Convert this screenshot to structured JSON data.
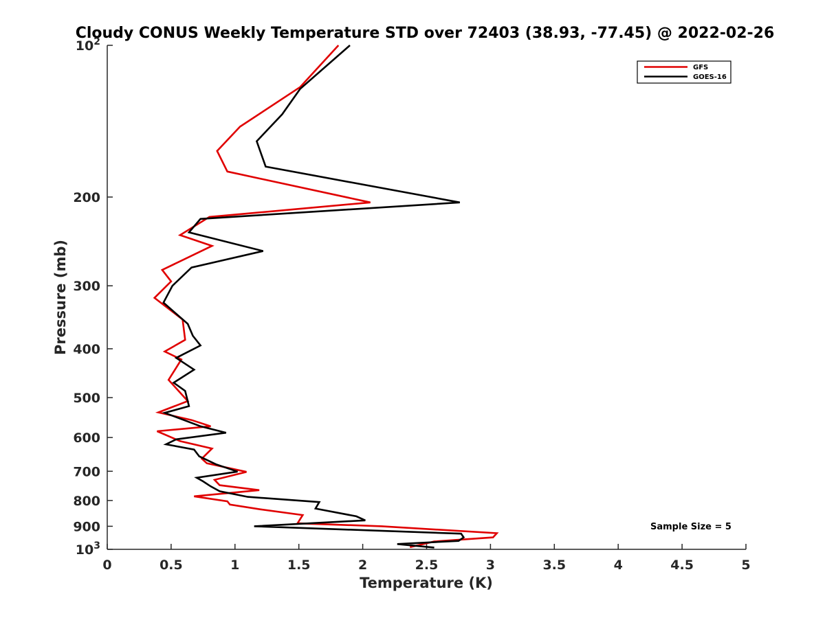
{
  "chart_data": {
    "type": "line",
    "title": "Cloudy CONUS Weekly Temperature STD over 72403 (38.93, -77.45) @ 2022-02-26",
    "xlabel": "Temperature (K)",
    "ylabel": "Pressure (mb)",
    "xlim": [
      0,
      5
    ],
    "ylim": [
      100,
      1000
    ],
    "y_scale": "log",
    "y_reversed": true,
    "grid": false,
    "legend_position": "top-right",
    "x_ticks": [
      "0",
      "0.5",
      "1",
      "1.5",
      "2",
      "2.5",
      "3",
      "3.5",
      "4",
      "4.5",
      "5"
    ],
    "y_ticks": [
      {
        "value": 100,
        "base": "10",
        "exp": "2"
      },
      {
        "value": 200,
        "label": "200"
      },
      {
        "value": 300,
        "label": "300"
      },
      {
        "value": 400,
        "label": "400"
      },
      {
        "value": 500,
        "label": "500"
      },
      {
        "value": 600,
        "label": "600"
      },
      {
        "value": 700,
        "label": "700"
      },
      {
        "value": 800,
        "label": "800"
      },
      {
        "value": 900,
        "label": "900"
      },
      {
        "value": 1000,
        "base": "10",
        "exp": "3"
      }
    ],
    "annotation": "Sample Size = 5",
    "series": [
      {
        "name": "GFS",
        "color": "#e00000",
        "points": [
          [
            1.81,
            100
          ],
          [
            1.51,
            121
          ],
          [
            1.04,
            145
          ],
          [
            0.86,
            162
          ],
          [
            0.94,
            178
          ],
          [
            2.06,
            205
          ],
          [
            0.8,
            219
          ],
          [
            0.57,
            238
          ],
          [
            0.82,
            250
          ],
          [
            0.43,
            279
          ],
          [
            0.5,
            294
          ],
          [
            0.37,
            317
          ],
          [
            0.59,
            350
          ],
          [
            0.61,
            384
          ],
          [
            0.45,
            405
          ],
          [
            0.58,
            420
          ],
          [
            0.48,
            461
          ],
          [
            0.63,
            508
          ],
          [
            0.4,
            535
          ],
          [
            0.66,
            554
          ],
          [
            0.81,
            570
          ],
          [
            0.39,
            583
          ],
          [
            0.57,
            610
          ],
          [
            0.82,
            631
          ],
          [
            0.74,
            661
          ],
          [
            0.78,
            675
          ],
          [
            1.09,
            702
          ],
          [
            0.84,
            728
          ],
          [
            0.88,
            746
          ],
          [
            1.19,
            763
          ],
          [
            0.68,
            785
          ],
          [
            0.94,
            803
          ],
          [
            0.96,
            815
          ],
          [
            1.2,
            833
          ],
          [
            1.53,
            855
          ],
          [
            1.49,
            888
          ],
          [
            2.15,
            900
          ],
          [
            3.05,
            929
          ],
          [
            3.02,
            947
          ],
          [
            2.56,
            965
          ],
          [
            2.37,
            990
          ]
        ]
      },
      {
        "name": "GOES-16",
        "color": "#000000",
        "points": [
          [
            1.9,
            100
          ],
          [
            1.51,
            122
          ],
          [
            1.37,
            137
          ],
          [
            1.17,
            155
          ],
          [
            1.24,
            174
          ],
          [
            2.76,
            205
          ],
          [
            0.73,
            221
          ],
          [
            0.64,
            235
          ],
          [
            1.22,
            256
          ],
          [
            0.66,
            276
          ],
          [
            0.51,
            300
          ],
          [
            0.44,
            324
          ],
          [
            0.63,
            357
          ],
          [
            0.67,
            377
          ],
          [
            0.73,
            394
          ],
          [
            0.54,
            417
          ],
          [
            0.68,
            440
          ],
          [
            0.52,
            467
          ],
          [
            0.61,
            485
          ],
          [
            0.64,
            520
          ],
          [
            0.45,
            536
          ],
          [
            0.73,
            570
          ],
          [
            0.93,
            587
          ],
          [
            0.54,
            605
          ],
          [
            0.46,
            619
          ],
          [
            0.68,
            634
          ],
          [
            0.72,
            654
          ],
          [
            0.85,
            678
          ],
          [
            1.02,
            701
          ],
          [
            0.7,
            721
          ],
          [
            0.75,
            733
          ],
          [
            0.81,
            750
          ],
          [
            0.88,
            767
          ],
          [
            1.1,
            787
          ],
          [
            1.66,
            806
          ],
          [
            1.63,
            830
          ],
          [
            1.95,
            860
          ],
          [
            2.02,
            876
          ],
          [
            1.15,
            900
          ],
          [
            2.77,
            931
          ],
          [
            2.79,
            947
          ],
          [
            2.75,
            962
          ],
          [
            2.27,
            976
          ],
          [
            2.56,
            992
          ]
        ]
      }
    ]
  }
}
